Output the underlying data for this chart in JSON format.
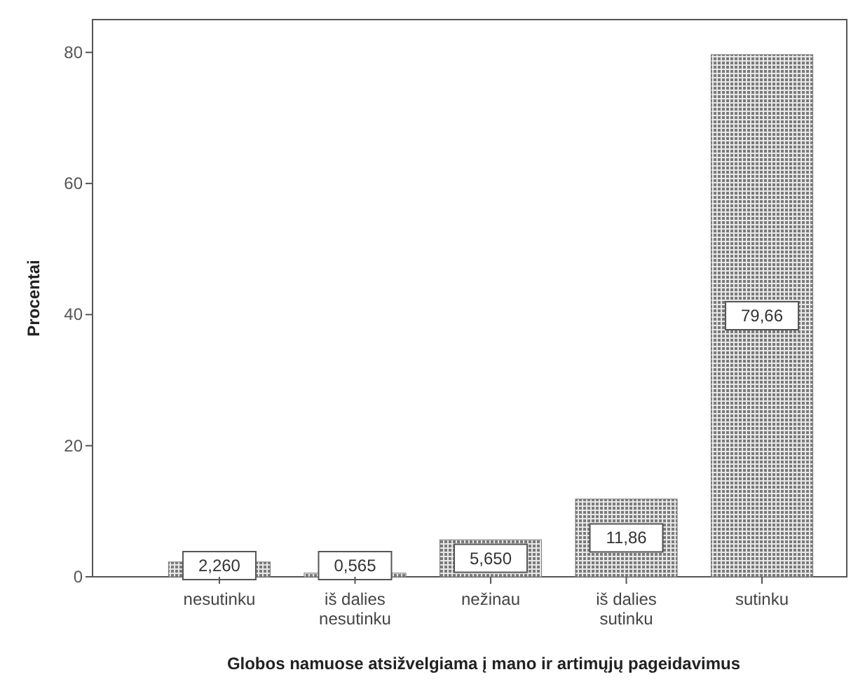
{
  "chart_data": {
    "type": "bar",
    "xlabel": "Globos namuose atsižvelgiama į mano ir artimųjų pageidavimus",
    "ylabel": "Procentai",
    "categories": [
      "nesutinku",
      "iš dalies nesutinku",
      "nežinau",
      "iš dalies sutinku",
      "sutinku"
    ],
    "values": [
      2.26,
      0.565,
      5.65,
      11.86,
      79.66
    ],
    "value_labels": [
      "2,260",
      "0,565",
      "5,650",
      "11,86",
      "79,66"
    ],
    "color": "#7a7a7a",
    "ylim": [
      0,
      85
    ],
    "yticks": [
      0,
      20,
      40,
      60,
      80
    ],
    "grid": false
  }
}
